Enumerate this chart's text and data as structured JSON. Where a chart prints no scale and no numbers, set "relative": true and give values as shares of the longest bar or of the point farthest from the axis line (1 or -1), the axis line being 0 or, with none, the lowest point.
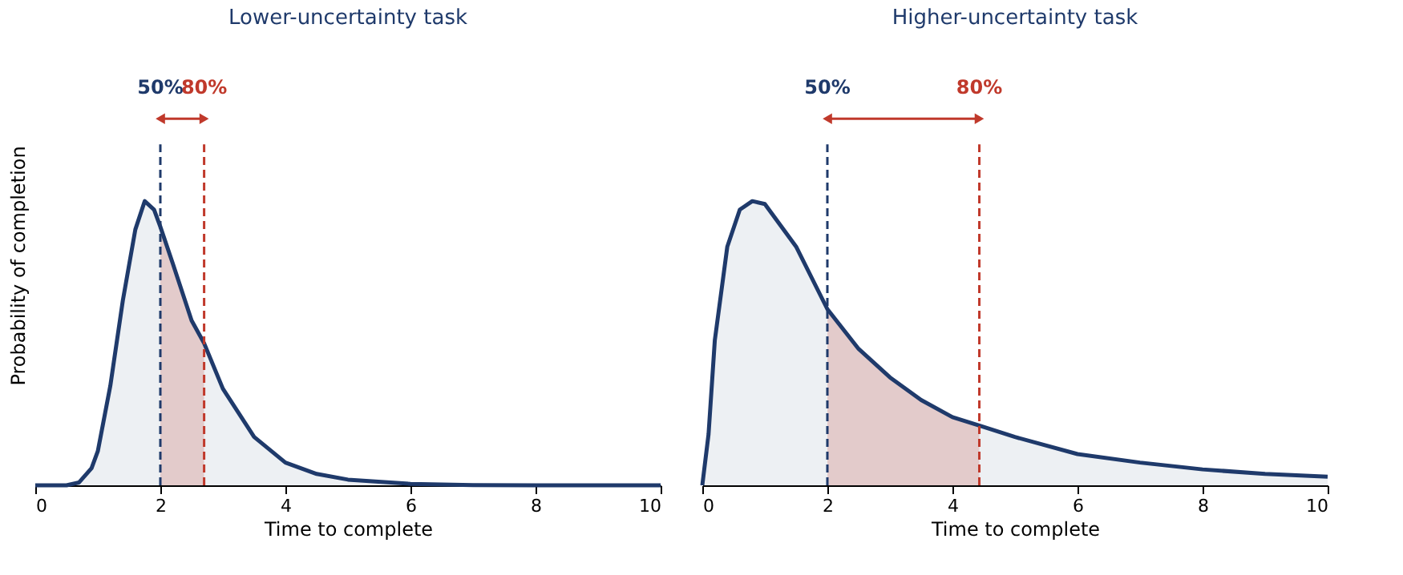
{
  "chart_data": [
    {
      "type": "area",
      "title": "Lower-uncertainty task",
      "xlabel": "Time to complete",
      "ylabel": "Probability of completion",
      "relative": true,
      "xlim": [
        0,
        10
      ],
      "xticks": [
        0,
        2,
        4,
        6,
        8,
        10
      ],
      "grid": false,
      "series": [
        {
          "color": "#1f3a6b",
          "line_style": "solid",
          "x": [
            0,
            0.5,
            0.7,
            0.9,
            1.0,
            1.2,
            1.4,
            1.6,
            1.75,
            1.9,
            2.0,
            2.2,
            2.5,
            2.7,
            3.0,
            3.5,
            4.0,
            4.5,
            5,
            6,
            7,
            8,
            10
          ],
          "values": [
            0,
            0,
            0.01,
            0.06,
            0.12,
            0.35,
            0.65,
            0.9,
            1.0,
            0.97,
            0.91,
            0.78,
            0.58,
            0.5,
            0.34,
            0.17,
            0.08,
            0.04,
            0.02,
            0.005,
            0.001,
            0,
            0
          ]
        },
        {
          "type": "area",
          "color": "#c0392b",
          "x": [
            2.0,
            2.2,
            2.5,
            2.7
          ],
          "values": [
            0.91,
            0.78,
            0.58,
            0.5
          ]
        }
      ],
      "ref_lines": [
        {
          "axis": "x",
          "value": 2,
          "color": "#1f3a6b",
          "line_style": "dashed"
        },
        {
          "axis": "x",
          "value": 2.7,
          "color": "#c0392b",
          "line_style": "dashed"
        }
      ],
      "annotations": [
        "50%",
        "80%"
      ]
    },
    {
      "type": "area",
      "title": "Higher-uncertainty task",
      "xlabel": "Time to complete",
      "relative": true,
      "xlim": [
        0,
        10
      ],
      "xticks": [
        0,
        2,
        4,
        6,
        8,
        10
      ],
      "grid": false,
      "series": [
        {
          "color": "#1f3a6b",
          "line_style": "solid",
          "x": [
            0,
            0.1,
            0.2,
            0.4,
            0.6,
            0.8,
            1.0,
            1.5,
            2.0,
            2.5,
            3.0,
            3.5,
            4.0,
            4.43,
            5,
            6,
            7,
            8,
            9,
            10
          ],
          "values": [
            0,
            0.18,
            0.51,
            0.84,
            0.97,
            1.0,
            0.99,
            0.84,
            0.62,
            0.48,
            0.38,
            0.3,
            0.24,
            0.21,
            0.17,
            0.11,
            0.08,
            0.056,
            0.04,
            0.03
          ]
        },
        {
          "type": "area",
          "color": "#c0392b",
          "x": [
            2.0,
            2.5,
            3.0,
            3.5,
            4.0,
            4.43
          ],
          "values": [
            0.62,
            0.48,
            0.38,
            0.3,
            0.24,
            0.21
          ]
        }
      ],
      "ref_lines": [
        {
          "axis": "x",
          "value": 2,
          "color": "#1f3a6b",
          "line_style": "dashed"
        },
        {
          "axis": "x",
          "value": 4.43,
          "color": "#c0392b",
          "line_style": "dashed"
        }
      ],
      "annotations": [
        "50%",
        "80%"
      ]
    }
  ]
}
